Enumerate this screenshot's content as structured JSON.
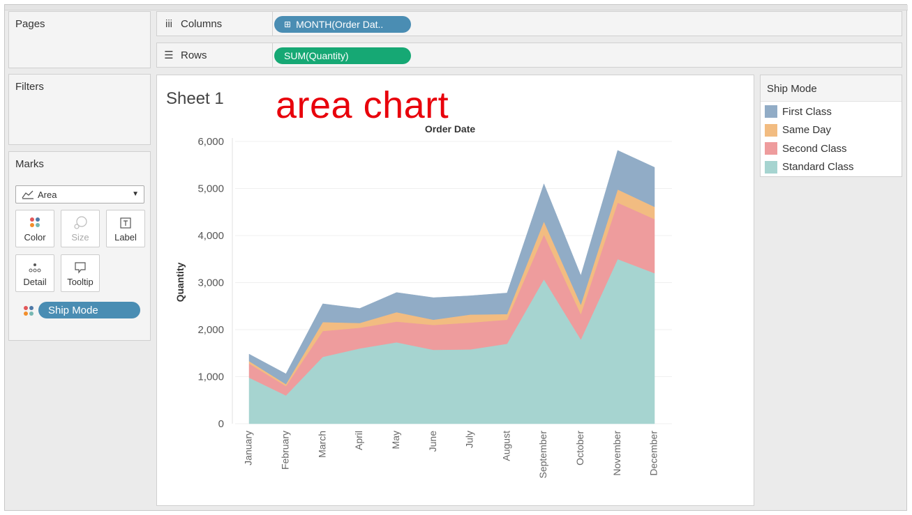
{
  "left_panel": {
    "pages_title": "Pages",
    "filters_title": "Filters",
    "marks": {
      "title": "Marks",
      "mark_type": "Area",
      "buttons": {
        "color": "Color",
        "size": "Size",
        "label": "Label",
        "detail": "Detail",
        "tooltip": "Tooltip"
      },
      "color_pill": "Ship Mode"
    }
  },
  "shelves": {
    "columns_label": "Columns",
    "columns_pill": "MONTH(Order Dat..",
    "rows_label": "Rows",
    "rows_pill": "SUM(Quantity)"
  },
  "sheet": {
    "title": "Sheet 1",
    "overlay_text": "area chart"
  },
  "legend": {
    "title": "Ship Mode"
  },
  "chart_data": {
    "type": "area",
    "stacked": true,
    "title": "",
    "top_axis_label": "Order Date",
    "xlabel": "",
    "ylabel": "Quantity",
    "ylim": [
      0,
      6000
    ],
    "yticks": [
      0,
      1000,
      2000,
      3000,
      4000,
      5000,
      6000
    ],
    "ytick_labels": [
      "0",
      "1,000",
      "2,000",
      "3,000",
      "4,000",
      "5,000",
      "6,000"
    ],
    "grid": true,
    "legend_position": "right",
    "categories": [
      "January",
      "February",
      "March",
      "April",
      "May",
      "June",
      "July",
      "August",
      "September",
      "October",
      "November",
      "December"
    ],
    "series": [
      {
        "name": "Standard Class",
        "color": "#a6d4d0",
        "values": [
          980,
          600,
          1420,
          1600,
          1730,
          1570,
          1580,
          1700,
          3070,
          1790,
          3500,
          3200
        ]
      },
      {
        "name": "Second Class",
        "color": "#ee9c9d",
        "values": [
          300,
          200,
          550,
          440,
          440,
          530,
          570,
          510,
          950,
          540,
          1200,
          1150
        ]
      },
      {
        "name": "Same Day",
        "color": "#f2bc81",
        "values": [
          50,
          40,
          190,
          100,
          200,
          110,
          170,
          120,
          280,
          200,
          280,
          260
        ]
      },
      {
        "name": "First Class",
        "color": "#91acc6",
        "values": [
          150,
          220,
          390,
          310,
          420,
          470,
          400,
          450,
          800,
          620,
          830,
          840
        ]
      }
    ]
  }
}
